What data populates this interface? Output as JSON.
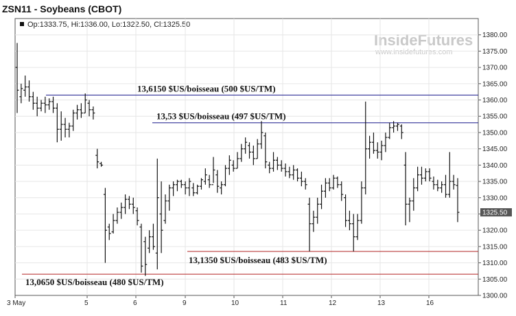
{
  "header": {
    "title": "ZSN11 - Soybeans (CBOT)",
    "ohlc": "Op:1333.75, Hi:1336.00, Lo:1322.50, Cl:1325.50"
  },
  "watermark": {
    "brand": "InsideFutures",
    "url": "www.insidefutures.com"
  },
  "chart_data": {
    "type": "ohlc",
    "symbol": "ZSN11",
    "title": "ZSN11 - Soybeans (CBOT)",
    "ylim": [
      1300,
      1385
    ],
    "y_ticks": [
      "1300.00",
      "1305.00",
      "1310.00",
      "1315.00",
      "1320.00",
      "1325.00",
      "1330.00",
      "1335.00",
      "1340.00",
      "1345.00",
      "1350.00",
      "1355.00",
      "1360.00",
      "1365.00",
      "1370.00",
      "1375.00",
      "1380.00"
    ],
    "x_ticks": [
      "3 May",
      "5",
      "6",
      "9",
      "10",
      "11",
      "12",
      "13",
      "16"
    ],
    "last_price_label": "1325.50",
    "colors": {
      "bars": "#111111",
      "resistance_line": "#1a1a8c",
      "support_line": "#b22222",
      "last_tag": "#555555"
    },
    "horizontal_lines": [
      {
        "price": 1361.5,
        "label": "13,6150 $US/boisseau (500 $US/TM)",
        "kind": "resistance"
      },
      {
        "price": 1353.0,
        "label": "13,53 $US/boisseau (497 $US/TM)",
        "kind": "resistance"
      },
      {
        "price": 1313.5,
        "label": "13,1350 $US/boisseau (483 $US/TM)",
        "kind": "support"
      },
      {
        "price": 1306.5,
        "label": "13,0650 $US/boisseau (480 $US/TM)",
        "kind": "support"
      }
    ],
    "bars": [
      {
        "h": 1377.5,
        "l": 1356.0,
        "o": 1370.0,
        "c": 1363.0
      },
      {
        "h": 1365.0,
        "l": 1359.0,
        "o": 1361.0,
        "c": 1363.5
      },
      {
        "h": 1367.5,
        "l": 1361.0,
        "o": 1363.0,
        "c": 1364.0
      },
      {
        "h": 1366.0,
        "l": 1359.5,
        "o": 1364.0,
        "c": 1361.0
      },
      {
        "h": 1362.5,
        "l": 1357.0,
        "o": 1361.0,
        "c": 1359.0
      },
      {
        "h": 1361.0,
        "l": 1355.0,
        "o": 1359.0,
        "c": 1357.5
      },
      {
        "h": 1360.0,
        "l": 1356.5,
        "o": 1357.5,
        "c": 1359.0
      },
      {
        "h": 1361.0,
        "l": 1356.0,
        "o": 1359.0,
        "c": 1358.5
      },
      {
        "h": 1360.5,
        "l": 1357.0,
        "o": 1358.5,
        "c": 1359.5
      },
      {
        "h": 1361.0,
        "l": 1356.0,
        "o": 1359.5,
        "c": 1357.5
      },
      {
        "h": 1359.0,
        "l": 1347.0,
        "o": 1357.5,
        "c": 1351.0
      },
      {
        "h": 1356.5,
        "l": 1347.5,
        "o": 1351.0,
        "c": 1352.5
      },
      {
        "h": 1354.5,
        "l": 1348.5,
        "o": 1352.5,
        "c": 1351.0
      },
      {
        "h": 1353.0,
        "l": 1348.5,
        "o": 1351.0,
        "c": 1352.0
      },
      {
        "h": 1357.0,
        "l": 1350.5,
        "o": 1352.0,
        "c": 1356.0
      },
      {
        "h": 1358.5,
        "l": 1354.0,
        "o": 1356.0,
        "c": 1357.0
      },
      {
        "h": 1359.0,
        "l": 1354.5,
        "o": 1357.0,
        "c": 1356.0
      },
      {
        "h": 1362.0,
        "l": 1356.0,
        "o": 1356.0,
        "c": 1360.0
      },
      {
        "h": 1360.0,
        "l": 1355.0,
        "o": 1359.0,
        "c": 1357.0
      },
      {
        "h": 1358.0,
        "l": 1354.0,
        "o": 1357.0,
        "c": 1356.0
      },
      {
        "h": 1345.0,
        "l": 1339.0,
        "o": 1343.0,
        "c": 1341.0
      },
      {
        "h": 1341.0,
        "l": 1339.5,
        "o": 1340.5,
        "c": 1340.0
      },
      {
        "h": 1333.0,
        "l": 1310.0,
        "o": 1331.0,
        "c": 1320.0
      },
      {
        "h": 1322.0,
        "l": 1317.0,
        "o": 1321.0,
        "c": 1319.0
      },
      {
        "h": 1325.0,
        "l": 1319.0,
        "o": 1319.5,
        "c": 1323.0
      },
      {
        "h": 1327.0,
        "l": 1322.0,
        "o": 1323.0,
        "c": 1325.5
      },
      {
        "h": 1328.5,
        "l": 1323.5,
        "o": 1325.5,
        "c": 1327.0
      },
      {
        "h": 1331.0,
        "l": 1325.0,
        "o": 1327.0,
        "c": 1329.5
      },
      {
        "h": 1330.5,
        "l": 1326.5,
        "o": 1329.5,
        "c": 1328.0
      },
      {
        "h": 1330.0,
        "l": 1325.0,
        "o": 1328.0,
        "c": 1327.0
      },
      {
        "h": 1327.0,
        "l": 1321.5,
        "o": 1326.0,
        "c": 1323.0
      },
      {
        "h": 1322.0,
        "l": 1307.0,
        "o": 1321.0,
        "c": 1309.0
      },
      {
        "h": 1318.0,
        "l": 1306.0,
        "o": 1316.5,
        "c": 1309.5
      },
      {
        "h": 1320.0,
        "l": 1313.0,
        "o": 1314.5,
        "c": 1318.0
      },
      {
        "h": 1322.0,
        "l": 1314.0,
        "o": 1318.0,
        "c": 1315.0
      },
      {
        "h": 1342.0,
        "l": 1308.0,
        "o": 1313.0,
        "c": 1330.0
      },
      {
        "h": 1335.0,
        "l": 1313.0,
        "o": 1325.0,
        "c": 1320.0
      },
      {
        "h": 1331.0,
        "l": 1322.0,
        "o": 1323.0,
        "c": 1329.0
      },
      {
        "h": 1334.0,
        "l": 1326.0,
        "o": 1329.0,
        "c": 1333.0
      },
      {
        "h": 1335.0,
        "l": 1330.5,
        "o": 1333.0,
        "c": 1334.0
      },
      {
        "h": 1335.5,
        "l": 1332.0,
        "o": 1334.0,
        "c": 1335.0
      },
      {
        "h": 1335.5,
        "l": 1333.0,
        "o": 1335.0,
        "c": 1334.0
      },
      {
        "h": 1335.0,
        "l": 1331.0,
        "o": 1334.0,
        "c": 1333.0
      },
      {
        "h": 1336.0,
        "l": 1330.5,
        "o": 1333.0,
        "c": 1335.0
      },
      {
        "h": 1334.5,
        "l": 1330.5,
        "o": 1333.0,
        "c": 1331.5
      },
      {
        "h": 1334.0,
        "l": 1331.0,
        "o": 1331.5,
        "c": 1333.5
      },
      {
        "h": 1336.0,
        "l": 1332.5,
        "o": 1333.5,
        "c": 1335.5
      },
      {
        "h": 1339.0,
        "l": 1334.0,
        "o": 1335.0,
        "c": 1337.0
      },
      {
        "h": 1337.0,
        "l": 1333.0,
        "o": 1335.5,
        "c": 1334.0
      },
      {
        "h": 1342.5,
        "l": 1334.5,
        "o": 1334.0,
        "c": 1338.5
      },
      {
        "h": 1338.5,
        "l": 1331.5,
        "o": 1337.0,
        "c": 1333.5
      },
      {
        "h": 1335.0,
        "l": 1331.0,
        "o": 1333.0,
        "c": 1334.0
      },
      {
        "h": 1340.0,
        "l": 1333.5,
        "o": 1334.0,
        "c": 1339.0
      },
      {
        "h": 1343.0,
        "l": 1337.0,
        "o": 1339.0,
        "c": 1341.5
      },
      {
        "h": 1341.5,
        "l": 1338.0,
        "o": 1340.0,
        "c": 1339.0
      },
      {
        "h": 1344.0,
        "l": 1339.0,
        "o": 1339.0,
        "c": 1342.0
      },
      {
        "h": 1346.5,
        "l": 1341.0,
        "o": 1342.0,
        "c": 1345.0
      },
      {
        "h": 1348.5,
        "l": 1343.5,
        "o": 1345.0,
        "c": 1347.0
      },
      {
        "h": 1347.0,
        "l": 1342.0,
        "o": 1346.0,
        "c": 1344.0
      },
      {
        "h": 1346.0,
        "l": 1340.0,
        "o": 1344.0,
        "c": 1342.0
      },
      {
        "h": 1348.0,
        "l": 1342.0,
        "o": 1342.0,
        "c": 1346.5
      },
      {
        "h": 1353.5,
        "l": 1345.0,
        "o": 1346.5,
        "c": 1350.0
      },
      {
        "h": 1350.0,
        "l": 1339.0,
        "o": 1349.0,
        "c": 1341.0
      },
      {
        "h": 1341.0,
        "l": 1337.5,
        "o": 1340.0,
        "c": 1339.0
      },
      {
        "h": 1344.0,
        "l": 1338.0,
        "o": 1339.0,
        "c": 1341.5
      },
      {
        "h": 1342.5,
        "l": 1338.5,
        "o": 1341.5,
        "c": 1340.0
      },
      {
        "h": 1341.5,
        "l": 1338.0,
        "o": 1340.0,
        "c": 1339.0
      },
      {
        "h": 1340.5,
        "l": 1336.5,
        "o": 1339.0,
        "c": 1338.0
      },
      {
        "h": 1339.5,
        "l": 1336.0,
        "o": 1338.0,
        "c": 1337.0
      },
      {
        "h": 1340.0,
        "l": 1335.5,
        "o": 1337.0,
        "c": 1338.5
      },
      {
        "h": 1339.0,
        "l": 1335.0,
        "o": 1338.5,
        "c": 1336.0
      },
      {
        "h": 1338.0,
        "l": 1333.5,
        "o": 1336.0,
        "c": 1335.0
      },
      {
        "h": 1336.0,
        "l": 1332.5,
        "o": 1335.0,
        "c": 1334.0
      },
      {
        "h": 1330.0,
        "l": 1313.5,
        "o": 1328.0,
        "c": 1322.0
      },
      {
        "h": 1326.0,
        "l": 1319.5,
        "o": 1322.0,
        "c": 1324.0
      },
      {
        "h": 1330.0,
        "l": 1322.0,
        "o": 1324.0,
        "c": 1328.0
      },
      {
        "h": 1334.0,
        "l": 1326.5,
        "o": 1328.0,
        "c": 1332.0
      },
      {
        "h": 1336.0,
        "l": 1330.0,
        "o": 1332.0,
        "c": 1334.5
      },
      {
        "h": 1336.0,
        "l": 1332.0,
        "o": 1334.5,
        "c": 1333.0
      },
      {
        "h": 1337.0,
        "l": 1332.5,
        "o": 1333.0,
        "c": 1336.0
      },
      {
        "h": 1336.5,
        "l": 1333.0,
        "o": 1336.0,
        "c": 1334.0
      },
      {
        "h": 1335.0,
        "l": 1329.0,
        "o": 1334.0,
        "c": 1331.0
      },
      {
        "h": 1331.0,
        "l": 1321.0,
        "o": 1330.0,
        "c": 1323.0
      },
      {
        "h": 1326.0,
        "l": 1320.0,
        "o": 1323.0,
        "c": 1322.0
      },
      {
        "h": 1325.0,
        "l": 1313.5,
        "o": 1322.0,
        "c": 1318.0
      },
      {
        "h": 1325.0,
        "l": 1317.0,
        "o": 1318.0,
        "c": 1323.0
      },
      {
        "h": 1335.0,
        "l": 1322.0,
        "o": 1323.0,
        "c": 1333.0
      },
      {
        "h": 1359.5,
        "l": 1331.0,
        "o": 1333.0,
        "c": 1345.0
      },
      {
        "h": 1349.0,
        "l": 1342.0,
        "o": 1345.0,
        "c": 1347.0
      },
      {
        "h": 1350.0,
        "l": 1343.5,
        "o": 1347.0,
        "c": 1344.5
      },
      {
        "h": 1347.0,
        "l": 1342.0,
        "o": 1344.5,
        "c": 1344.0
      },
      {
        "h": 1347.5,
        "l": 1341.5,
        "o": 1344.0,
        "c": 1346.0
      },
      {
        "h": 1350.0,
        "l": 1344.0,
        "o": 1346.0,
        "c": 1348.5
      },
      {
        "h": 1353.0,
        "l": 1348.0,
        "o": 1348.5,
        "c": 1351.5
      },
      {
        "h": 1353.5,
        "l": 1350.0,
        "o": 1351.5,
        "c": 1352.0
      },
      {
        "h": 1353.0,
        "l": 1350.5,
        "o": 1352.0,
        "c": 1352.5
      },
      {
        "h": 1352.5,
        "l": 1348.0,
        "o": 1352.0,
        "c": 1350.0
      },
      {
        "h": 1344.0,
        "l": 1321.5,
        "o": 1340.0,
        "c": 1328.0
      },
      {
        "h": 1330.0,
        "l": 1322.5,
        "o": 1328.0,
        "c": 1329.0
      },
      {
        "h": 1336.0,
        "l": 1326.0,
        "o": 1329.0,
        "c": 1333.0
      },
      {
        "h": 1339.5,
        "l": 1332.0,
        "o": 1333.0,
        "c": 1337.0
      },
      {
        "h": 1339.5,
        "l": 1334.0,
        "o": 1337.0,
        "c": 1336.0
      },
      {
        "h": 1339.0,
        "l": 1335.0,
        "o": 1336.0,
        "c": 1338.0
      },
      {
        "h": 1339.0,
        "l": 1335.0,
        "o": 1338.0,
        "c": 1336.0
      },
      {
        "h": 1336.5,
        "l": 1332.5,
        "o": 1335.0,
        "c": 1334.0
      },
      {
        "h": 1335.5,
        "l": 1332.0,
        "o": 1334.0,
        "c": 1333.0
      },
      {
        "h": 1335.0,
        "l": 1331.5,
        "o": 1333.0,
        "c": 1334.0
      },
      {
        "h": 1337.0,
        "l": 1330.0,
        "o": 1334.0,
        "c": 1331.0
      },
      {
        "h": 1344.0,
        "l": 1330.0,
        "o": 1331.0,
        "c": 1335.0
      },
      {
        "h": 1337.0,
        "l": 1332.5,
        "o": 1335.0,
        "c": 1334.0
      },
      {
        "h": 1336.0,
        "l": 1322.5,
        "o": 1333.75,
        "c": 1325.5
      }
    ]
  }
}
